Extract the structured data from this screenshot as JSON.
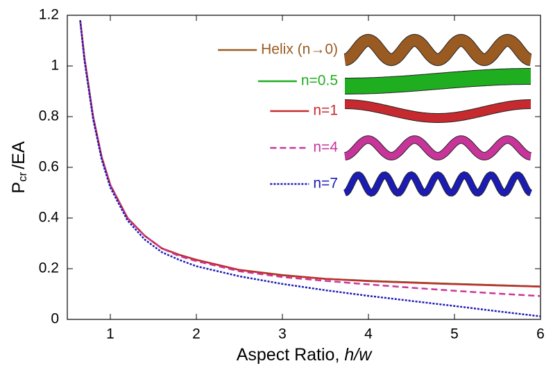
{
  "chart_data": {
    "type": "line",
    "y_label": [
      "P",
      "cr",
      "/EA"
    ],
    "x_label": [
      "Aspect Ratio, ",
      "h/w"
    ],
    "x": [
      0.65,
      0.7,
      0.8,
      0.9,
      1,
      1.2,
      1.4,
      1.6,
      1.8,
      2,
      2.5,
      3,
      3.5,
      4,
      4.5,
      5,
      5.5,
      6
    ],
    "series": [
      {
        "name": "Helix (n→0)",
        "color": "#9a5b23",
        "dash": "solid",
        "values": [
          1.18,
          1.03,
          0.8,
          0.64,
          0.53,
          0.4,
          0.33,
          0.28,
          0.255,
          0.235,
          0.195,
          0.175,
          0.16,
          0.152,
          0.146,
          0.14,
          0.135,
          0.13
        ]
      },
      {
        "name": "n=0.5",
        "color": "#1fae1f",
        "dash": "solid",
        "values": [
          1.18,
          1.03,
          0.8,
          0.64,
          0.53,
          0.4,
          0.33,
          0.28,
          0.255,
          0.235,
          0.195,
          0.175,
          0.16,
          0.152,
          0.146,
          0.14,
          0.135,
          0.13
        ]
      },
      {
        "name": "n=1",
        "color": "#c62a2f",
        "dash": "solid",
        "values": [
          1.18,
          1.03,
          0.8,
          0.64,
          0.53,
          0.4,
          0.33,
          0.28,
          0.255,
          0.235,
          0.195,
          0.174,
          0.16,
          0.151,
          0.145,
          0.139,
          0.134,
          0.129
        ]
      },
      {
        "name": "n=4",
        "color": "#c8359a",
        "dash": "dashed",
        "values": [
          1.18,
          1.03,
          0.8,
          0.64,
          0.53,
          0.4,
          0.33,
          0.28,
          0.25,
          0.23,
          0.19,
          0.167,
          0.152,
          0.138,
          0.125,
          0.113,
          0.102,
          0.092
        ]
      },
      {
        "name": "n=7",
        "color": "#1c1cb4",
        "dash": "dotted",
        "values": [
          1.18,
          1.02,
          0.79,
          0.63,
          0.52,
          0.39,
          0.315,
          0.265,
          0.235,
          0.21,
          0.17,
          0.14,
          0.115,
          0.093,
          0.073,
          0.053,
          0.032,
          0.012
        ]
      }
    ],
    "xlim": [
      0.5,
      6
    ],
    "xticks": [
      1,
      2,
      3,
      4,
      5,
      6
    ],
    "ylim": [
      0,
      1.2
    ],
    "yticks": [
      0,
      0.2,
      0.4,
      0.6,
      0.8,
      1,
      1.2
    ],
    "grid": false
  }
}
